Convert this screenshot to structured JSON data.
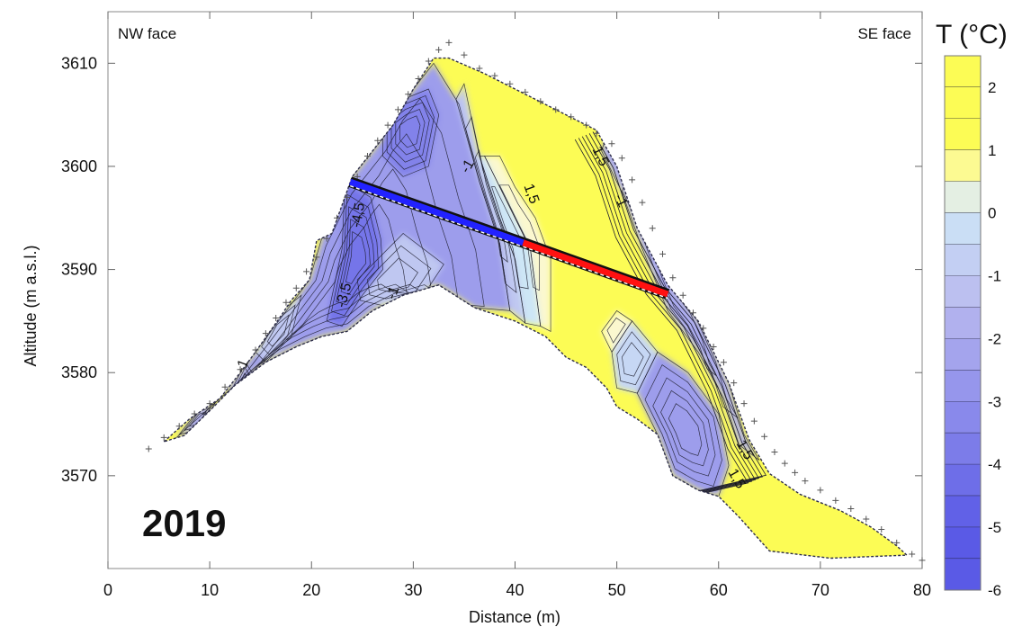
{
  "chart_data": {
    "type": "heatmap",
    "year_label": "2019",
    "corner_labels": {
      "left": "NW face",
      "right": "SE face"
    },
    "xlabel": "Distance (m)",
    "ylabel": "Altitude (m a.s.l.)",
    "xlim": [
      0,
      80
    ],
    "ylim": [
      3561,
      3615
    ],
    "x_ticks": [
      0,
      10,
      20,
      30,
      40,
      50,
      60,
      70,
      80
    ],
    "y_ticks": [
      3570,
      3580,
      3590,
      3600,
      3610
    ],
    "colorbar": {
      "title": "T (°C)",
      "range": [
        -6,
        2.5
      ],
      "tick_labels": [
        "2",
        "1",
        "0",
        "-1",
        "-2",
        "-3",
        "-4",
        "-5",
        "-6"
      ],
      "tick_values": [
        2,
        1,
        0,
        -1,
        -2,
        -3,
        -4,
        -5,
        -6
      ],
      "step": 0.5,
      "colors": {
        "cold": "#5a5ae6",
        "cool": "#b8b8ef",
        "zero": "#cde6f6",
        "mild": "#fbf8cf",
        "warm": "#fcfc55"
      }
    },
    "ridge_outline": [
      [
        5.5,
        3573.3
      ],
      [
        8,
        3575.5
      ],
      [
        11,
        3577.5
      ],
      [
        13,
        3580
      ],
      [
        14.5,
        3582
      ],
      [
        17,
        3585.5
      ],
      [
        18,
        3587
      ],
      [
        19.8,
        3589
      ],
      [
        20.5,
        3592.8
      ],
      [
        22,
        3593.5
      ],
      [
        24,
        3599
      ],
      [
        28,
        3604
      ],
      [
        30,
        3607.5
      ],
      [
        32,
        3610.5
      ],
      [
        33.5,
        3610.5
      ],
      [
        37,
        3609
      ],
      [
        40,
        3607.5
      ],
      [
        45,
        3605
      ],
      [
        48,
        3603.5
      ],
      [
        50,
        3600
      ],
      [
        52,
        3594
      ],
      [
        55,
        3588.5
      ],
      [
        58,
        3585
      ],
      [
        61,
        3579
      ],
      [
        63,
        3573.5
      ],
      [
        65,
        3570.2
      ],
      [
        68,
        3568.2
      ],
      [
        72,
        3566.6
      ],
      [
        75,
        3565
      ],
      [
        77.5,
        3563.2
      ],
      [
        78.5,
        3562.3
      ],
      [
        71,
        3562
      ],
      [
        65,
        3562.7
      ],
      [
        62,
        3566
      ],
      [
        60,
        3568
      ],
      [
        58,
        3568.6
      ],
      [
        55.5,
        3570
      ],
      [
        54,
        3574
      ],
      [
        52,
        3575.5
      ],
      [
        50,
        3576.7
      ],
      [
        49,
        3578.5
      ],
      [
        47,
        3580.5
      ],
      [
        45,
        3581.5
      ],
      [
        43,
        3583.5
      ],
      [
        40,
        3585
      ],
      [
        36,
        3586.3
      ],
      [
        32.5,
        3588.5
      ],
      [
        29,
        3587.5
      ],
      [
        26,
        3586
      ],
      [
        23.5,
        3584
      ],
      [
        21,
        3583.5
      ],
      [
        18.5,
        3582.5
      ],
      [
        15.5,
        3581
      ],
      [
        12.5,
        3578.8
      ],
      [
        10,
        3576.3
      ],
      [
        7.5,
        3573.9
      ]
    ],
    "temperature_zones": [
      {
        "t": -2.5,
        "poly": [
          [
            6.5,
            3573.5
          ],
          [
            11,
            3577.5
          ],
          [
            14.5,
            3582
          ],
          [
            19.8,
            3589
          ],
          [
            21,
            3593
          ],
          [
            24,
            3599
          ],
          [
            28,
            3604
          ],
          [
            30,
            3607.5
          ],
          [
            32,
            3610
          ],
          [
            34.5,
            3606
          ],
          [
            36.5,
            3598.5
          ],
          [
            38.5,
            3592.5
          ],
          [
            39.5,
            3586
          ],
          [
            36,
            3586.3
          ],
          [
            32.5,
            3588.5
          ],
          [
            29,
            3587.5
          ],
          [
            26,
            3586
          ],
          [
            23.5,
            3584
          ],
          [
            21,
            3583.5
          ],
          [
            18.5,
            3582.5
          ],
          [
            15.5,
            3581
          ],
          [
            12.5,
            3578.8
          ],
          [
            10,
            3576.3
          ],
          [
            7.5,
            3573.9
          ]
        ]
      },
      {
        "t": -1.0,
        "poly": [
          [
            24.5,
            3589
          ],
          [
            29,
            3593.5
          ],
          [
            33,
            3590.5
          ],
          [
            31,
            3587.5
          ],
          [
            27,
            3586.5
          ],
          [
            24.8,
            3587
          ]
        ]
      },
      {
        "t": -1.0,
        "poly": [
          [
            14.5,
            3582
          ],
          [
            16.5,
            3585.5
          ],
          [
            19,
            3587.5
          ],
          [
            18,
            3583.5
          ],
          [
            15.5,
            3581
          ]
        ]
      },
      {
        "t": -4.0,
        "poly": [
          [
            21.5,
            3585
          ],
          [
            23,
            3592
          ],
          [
            23.3,
            3598.5
          ],
          [
            25.8,
            3597
          ],
          [
            26.8,
            3593
          ],
          [
            27,
            3590
          ],
          [
            25,
            3587.5
          ],
          [
            23,
            3584.5
          ]
        ]
      },
      {
        "t": -3.5,
        "poly": [
          [
            27,
            3605
          ],
          [
            29,
            3606.5
          ],
          [
            31.5,
            3607.5
          ],
          [
            32.5,
            3605
          ],
          [
            31.5,
            3600
          ],
          [
            29,
            3599
          ],
          [
            27,
            3601
          ]
        ]
      },
      {
        "t": -2.0,
        "poly": [
          [
            12,
            3578
          ],
          [
            13.5,
            3581
          ],
          [
            14.5,
            3579.5
          ],
          [
            13.5,
            3577.5
          ]
        ]
      },
      {
        "t": -2.0,
        "poly": [
          [
            7,
            3574
          ],
          [
            9,
            3576.5
          ],
          [
            10.5,
            3577
          ],
          [
            9,
            3574.5
          ]
        ]
      },
      {
        "t": -1.0,
        "poly": [
          [
            35,
            3608
          ],
          [
            36.5,
            3601
          ],
          [
            38.5,
            3595
          ],
          [
            40,
            3591
          ],
          [
            41,
            3584.8
          ],
          [
            39.5,
            3586
          ],
          [
            38.5,
            3592.5
          ],
          [
            36.5,
            3598.5
          ],
          [
            34.2,
            3606.5
          ]
        ]
      },
      {
        "t": 0.0,
        "poly": [
          [
            37,
            3601
          ],
          [
            38.5,
            3598
          ],
          [
            40,
            3595
          ],
          [
            41.5,
            3592
          ],
          [
            42.5,
            3584.5
          ],
          [
            41,
            3584.8
          ],
          [
            40,
            3591
          ],
          [
            38.5,
            3595
          ],
          [
            36.5,
            3601
          ]
        ]
      },
      {
        "t": 0.5,
        "poly": [
          [
            38.5,
            3601
          ],
          [
            40,
            3598
          ],
          [
            42,
            3595
          ],
          [
            43.5,
            3591
          ],
          [
            43.5,
            3584
          ],
          [
            42.5,
            3584.5
          ],
          [
            41.5,
            3592
          ],
          [
            40,
            3595
          ],
          [
            38.5,
            3598
          ],
          [
            37,
            3601
          ]
        ]
      },
      {
        "t": -2.5,
        "poly": [
          [
            54,
            3582
          ],
          [
            57,
            3580
          ],
          [
            60,
            3576
          ],
          [
            61,
            3571
          ],
          [
            60,
            3568
          ],
          [
            58,
            3568.6
          ],
          [
            55.5,
            3570
          ],
          [
            54,
            3574
          ],
          [
            52,
            3578
          ]
        ]
      },
      {
        "t": -0.5,
        "poly": [
          [
            51.5,
            3585
          ],
          [
            54,
            3582
          ],
          [
            52,
            3578
          ],
          [
            50,
            3578.5
          ],
          [
            49.5,
            3582
          ]
        ]
      },
      {
        "t": 0.5,
        "poly": [
          [
            50,
            3586
          ],
          [
            51.5,
            3585
          ],
          [
            49.5,
            3582
          ],
          [
            48.5,
            3584
          ]
        ]
      },
      {
        "t": -2.0,
        "poly": [
          [
            49,
            3603
          ],
          [
            51,
            3599
          ],
          [
            53,
            3594
          ],
          [
            55.5,
            3588.5
          ],
          [
            58.5,
            3584.5
          ],
          [
            61,
            3579
          ],
          [
            62.5,
            3574
          ],
          [
            64,
            3571.5
          ],
          [
            62,
            3573
          ],
          [
            60.5,
            3577.5
          ],
          [
            58,
            3582
          ],
          [
            55,
            3586
          ],
          [
            52.5,
            3592
          ],
          [
            50.5,
            3597.5
          ],
          [
            48.5,
            3601.5
          ]
        ]
      }
    ],
    "contour_labels": [
      {
        "text": "-1",
        "x": 35.7,
        "y": 3599.8,
        "angle": -60
      },
      {
        "text": "1,5",
        "x": 41.2,
        "y": 3597.2,
        "angle": 70
      },
      {
        "text": "1,5",
        "x": 48,
        "y": 3600.8,
        "angle": 65
      },
      {
        "text": "-1",
        "x": 50,
        "y": 3596.5,
        "angle": 65
      },
      {
        "text": "-4,5",
        "x": 25,
        "y": 3595.2,
        "angle": -80
      },
      {
        "text": "-3,5",
        "x": 23.6,
        "y": 3587.4,
        "angle": -75
      },
      {
        "text": "-1",
        "x": 28.4,
        "y": 3587.6,
        "angle": -70
      },
      {
        "text": "-1",
        "x": 13.6,
        "y": 3580.5,
        "angle": -70
      },
      {
        "text": "1,5",
        "x": 62.2,
        "y": 3572.3,
        "angle": 60
      },
      {
        "text": "1,5",
        "x": 61.4,
        "y": 3569.5,
        "angle": 60
      }
    ],
    "cross_section": {
      "cold_segment": {
        "from": [
          23.8,
          3598.5
        ],
        "to": [
          40.8,
          3592.6
        ]
      },
      "warm_segment": {
        "from": [
          40.8,
          3592.6
        ],
        "to": [
          55,
          3587.6
        ]
      }
    },
    "electrode_markers": [
      [
        4,
        3572.6
      ],
      [
        5.5,
        3573.7
      ],
      [
        7,
        3574.8
      ],
      [
        8.5,
        3576
      ],
      [
        10,
        3577
      ],
      [
        11.5,
        3578.6
      ],
      [
        13,
        3580.3
      ],
      [
        14.5,
        3582.2
      ],
      [
        15.5,
        3583.8
      ],
      [
        16.5,
        3585.3
      ],
      [
        17.5,
        3586.8
      ],
      [
        18.5,
        3588.2
      ],
      [
        19.5,
        3589.8
      ],
      [
        20.5,
        3591.2
      ],
      [
        21.5,
        3593
      ],
      [
        22.5,
        3595
      ],
      [
        23.5,
        3597
      ],
      [
        24.5,
        3599
      ],
      [
        25.5,
        3601
      ],
      [
        26.5,
        3602.5
      ],
      [
        27.5,
        3604
      ],
      [
        28.5,
        3605.5
      ],
      [
        29.5,
        3607
      ],
      [
        30.5,
        3608.5
      ],
      [
        31.5,
        3610.2
      ],
      [
        32.5,
        3611.3
      ],
      [
        33.5,
        3612
      ],
      [
        35,
        3610.8
      ],
      [
        36.5,
        3609.5
      ],
      [
        38,
        3608.8
      ],
      [
        39.5,
        3608
      ],
      [
        41,
        3607.2
      ],
      [
        42.5,
        3606.3
      ],
      [
        44,
        3605.5
      ],
      [
        45.5,
        3604.8
      ],
      [
        47,
        3604
      ],
      [
        48,
        3603.2
      ],
      [
        49.5,
        3602.2
      ],
      [
        50.5,
        3600.8
      ],
      [
        51.5,
        3598.7
      ],
      [
        52.5,
        3596.5
      ],
      [
        53.5,
        3594
      ],
      [
        54.5,
        3591.5
      ],
      [
        55.5,
        3589.2
      ],
      [
        56.5,
        3587.5
      ],
      [
        57.5,
        3585.8
      ],
      [
        58.5,
        3584.3
      ],
      [
        59.5,
        3582.5
      ],
      [
        60.5,
        3581
      ],
      [
        61.5,
        3579
      ],
      [
        62.5,
        3577
      ],
      [
        63.5,
        3575.3
      ],
      [
        64.5,
        3573.8
      ],
      [
        65.5,
        3572.3
      ],
      [
        66.5,
        3571.2
      ],
      [
        67.5,
        3570.3
      ],
      [
        68.5,
        3569.5
      ],
      [
        70,
        3568.6
      ],
      [
        71.5,
        3567.6
      ],
      [
        73,
        3566.8
      ],
      [
        74.5,
        3565.8
      ],
      [
        76,
        3564.8
      ],
      [
        77.5,
        3563.5
      ],
      [
        79,
        3562.4
      ],
      [
        80,
        3561.8
      ]
    ]
  }
}
